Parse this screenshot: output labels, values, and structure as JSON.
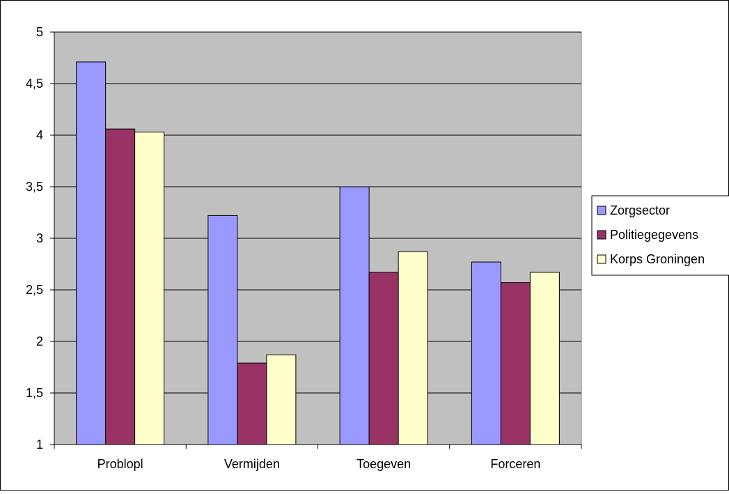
{
  "chart_data": {
    "type": "bar",
    "title": "",
    "xlabel": "",
    "ylabel": "",
    "categories": [
      "Problopl",
      "Vermijden",
      "Toegeven",
      "Forceren"
    ],
    "series": [
      {
        "name": "Zorgsector",
        "values": [
          4.71,
          3.22,
          3.5,
          2.77
        ],
        "color": "#9999ff"
      },
      {
        "name": "Politiegegevens",
        "values": [
          4.06,
          1.79,
          2.67,
          2.57
        ],
        "color": "#993366"
      },
      {
        "name": "Korps Groningen",
        "values": [
          4.03,
          1.87,
          2.87,
          2.67
        ],
        "color": "#ffffcc"
      }
    ],
    "ylim": [
      1,
      5
    ],
    "yticks": [
      "1",
      "1,5",
      "2",
      "2,5",
      "3",
      "3,5",
      "4",
      "4,5",
      "5"
    ],
    "grid": true,
    "legend_position": "right",
    "plot_background": "#c0c0c0"
  }
}
